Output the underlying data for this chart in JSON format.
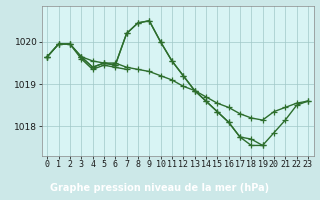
{
  "background_color": "#cce8e8",
  "plot_bg_color": "#d8f4f4",
  "grid_color": "#a0c8c8",
  "line_color": "#2d6e2d",
  "marker_color": "#2d6e2d",
  "title": "Graphe pression niveau de la mer (hPa)",
  "title_bg": "#2d6e2d",
  "title_fg": "#ffffff",
  "yticks": [
    1018,
    1019,
    1020
  ],
  "ylim": [
    1017.3,
    1020.85
  ],
  "xlim": [
    -0.5,
    23.5
  ],
  "series": [
    [
      1019.65,
      1019.95,
      1019.95,
      1019.65,
      1019.4,
      1019.5,
      1019.45,
      1020.2,
      1020.45,
      1020.5,
      1020.0,
      1019.55,
      1019.2,
      1018.85,
      1018.6,
      1018.35,
      1018.1,
      1017.75,
      1017.55,
      1017.55,
      1017.85,
      1018.15,
      1018.5,
      1018.6
    ],
    [
      1019.65,
      1019.95,
      1019.95,
      1019.65,
      1019.4,
      1019.5,
      1019.45,
      1020.2,
      1020.45,
      1020.5,
      1020.0,
      1019.55,
      1019.2,
      1018.85,
      1018.6,
      1018.35,
      1018.1,
      1017.75,
      1017.7,
      1017.55,
      null,
      null,
      null,
      null
    ],
    [
      1019.65,
      1019.95,
      1019.95,
      1019.6,
      1019.35,
      1019.45,
      1019.4,
      1019.35,
      null,
      null,
      null,
      null,
      null,
      null,
      null,
      null,
      null,
      null,
      null,
      null,
      null,
      null,
      null,
      null
    ],
    [
      1019.65,
      null,
      null,
      1019.65,
      1019.55,
      1019.5,
      1019.5,
      1019.4,
      1019.35,
      1019.3,
      1019.2,
      1019.1,
      1018.95,
      1018.85,
      1018.7,
      1018.55,
      1018.45,
      1018.3,
      1018.2,
      1018.15,
      1018.35,
      1018.45,
      1018.55,
      1018.6
    ]
  ],
  "marker_size": 4,
  "line_width": 1.0,
  "tick_fontsize": 6,
  "title_fontsize": 7
}
